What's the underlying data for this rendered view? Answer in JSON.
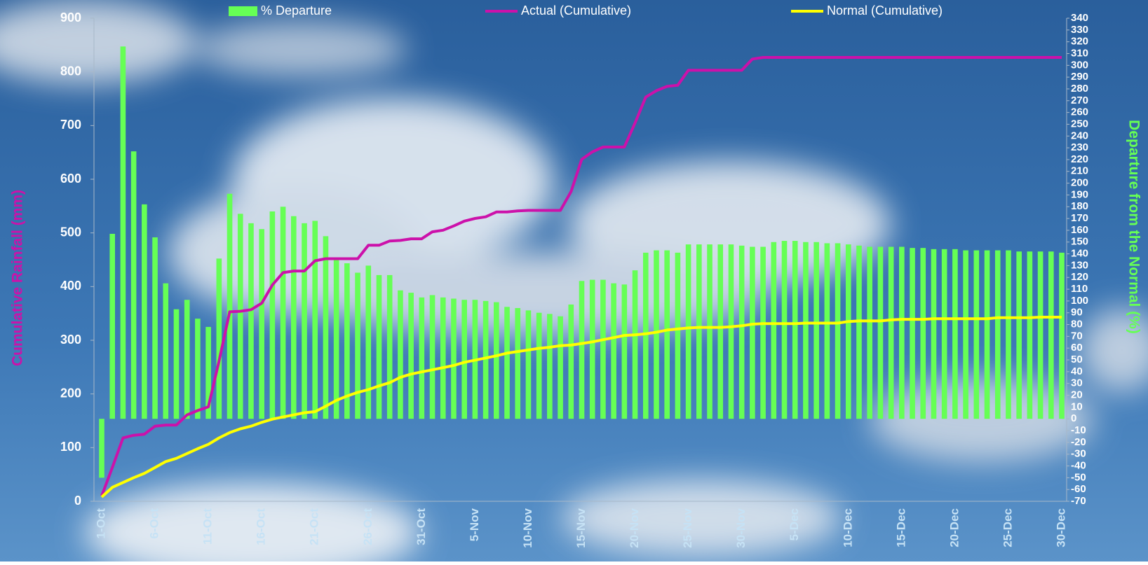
{
  "chart_data": {
    "type": "combo",
    "y_label": "Cumulative Rainfall (mm)",
    "y2_label": "Departure from the Normal (%)",
    "categories": [
      "1-Oct",
      null,
      null,
      null,
      null,
      "6-Oct",
      null,
      null,
      null,
      null,
      "11-Oct",
      null,
      null,
      null,
      null,
      "16-Oct",
      null,
      null,
      null,
      null,
      "21-Oct",
      null,
      null,
      null,
      null,
      "26-Oct",
      null,
      null,
      null,
      null,
      "31-Oct",
      null,
      null,
      null,
      null,
      "5-Nov",
      null,
      null,
      null,
      null,
      "10-Nov",
      null,
      null,
      null,
      null,
      "15-Nov",
      null,
      null,
      null,
      null,
      "20-Nov",
      null,
      null,
      null,
      null,
      "25-Nov",
      null,
      null,
      null,
      null,
      "30-Nov",
      null,
      null,
      null,
      null,
      "5-Dec",
      null,
      null,
      null,
      null,
      "10-Dec",
      null,
      null,
      null,
      null,
      "15-Dec",
      null,
      null,
      null,
      null,
      "20-Dec",
      null,
      null,
      null,
      null,
      "25-Dec",
      null,
      null,
      null,
      null,
      "30-Dec"
    ],
    "series": [
      {
        "name": "% Departure",
        "type": "bar",
        "axis": "y2",
        "color": "#66ff55",
        "values": [
          -50,
          157,
          316,
          227,
          182,
          154,
          115,
          93,
          101,
          85,
          78,
          136,
          191,
          174,
          166,
          161,
          176,
          180,
          172,
          166,
          168,
          155,
          135,
          132,
          124,
          130,
          122,
          122,
          109,
          107,
          103,
          105,
          103,
          102,
          101,
          101,
          100,
          99,
          95,
          94,
          92,
          90,
          89,
          87,
          97,
          117,
          118,
          118,
          115,
          114,
          126,
          141,
          143,
          143,
          141,
          148,
          148,
          148,
          148,
          148,
          147,
          146,
          146,
          150,
          151,
          151,
          150,
          150,
          149,
          149,
          148,
          147,
          146,
          146,
          146,
          146,
          145,
          145,
          144,
          144,
          144,
          143,
          143,
          143,
          143,
          143,
          142,
          142,
          142,
          142,
          141
        ]
      },
      {
        "name": "Actual (Cumulative)",
        "type": "line",
        "axis": "y",
        "color": "#cc11aa",
        "values": [
          10,
          63,
          118,
          123,
          125,
          140,
          142,
          142,
          161,
          169,
          176,
          261,
          353,
          354,
          357,
          369,
          403,
          426,
          429,
          429,
          448,
          452,
          452,
          452,
          452,
          477,
          477,
          485,
          486,
          489,
          489,
          502,
          505,
          513,
          522,
          527,
          530,
          539,
          539,
          541,
          542,
          542,
          542,
          542,
          577,
          637,
          651,
          660,
          660,
          660,
          705,
          753,
          765,
          773,
          775,
          803,
          803,
          803,
          803,
          803,
          803,
          824,
          827,
          827,
          827,
          827,
          827,
          827,
          827,
          827,
          827,
          827,
          827,
          827,
          827,
          827,
          827,
          827,
          827,
          827,
          827,
          827,
          827,
          827,
          827,
          827,
          827,
          827,
          827,
          827,
          827
        ]
      },
      {
        "name": "Normal (Cumulative)",
        "type": "line",
        "axis": "y",
        "color": "#ffff00",
        "values": [
          8,
          26,
          35,
          44,
          52,
          63,
          74,
          80,
          89,
          98,
          106,
          118,
          128,
          135,
          140,
          147,
          153,
          157,
          161,
          165,
          167,
          177,
          188,
          196,
          203,
          208,
          215,
          221,
          231,
          237,
          241,
          245,
          249,
          253,
          259,
          263,
          267,
          271,
          276,
          279,
          282,
          285,
          287,
          290,
          291,
          294,
          297,
          301,
          305,
          309,
          310,
          312,
          315,
          319,
          321,
          323,
          324,
          324,
          324,
          325,
          327,
          330,
          331,
          331,
          331,
          331,
          332,
          332,
          332,
          332,
          335,
          336,
          336,
          336,
          338,
          339,
          339,
          339,
          340,
          340,
          340,
          340,
          340,
          340,
          342,
          342,
          342,
          342,
          343,
          343,
          343
        ]
      }
    ],
    "ylim": [
      0,
      900
    ],
    "yticks": [
      0,
      100,
      200,
      300,
      400,
      500,
      600,
      700,
      800,
      900
    ],
    "y2lim": [
      -70,
      340
    ],
    "y2ticks": [
      -70,
      -60,
      -50,
      -40,
      -30,
      -20,
      -10,
      0,
      10,
      20,
      30,
      40,
      50,
      60,
      70,
      80,
      90,
      100,
      110,
      120,
      130,
      140,
      150,
      160,
      170,
      180,
      190,
      200,
      210,
      220,
      230,
      240,
      250,
      260,
      270,
      280,
      290,
      300,
      310,
      320,
      330,
      340
    ],
    "legend": "top",
    "grid": false
  }
}
